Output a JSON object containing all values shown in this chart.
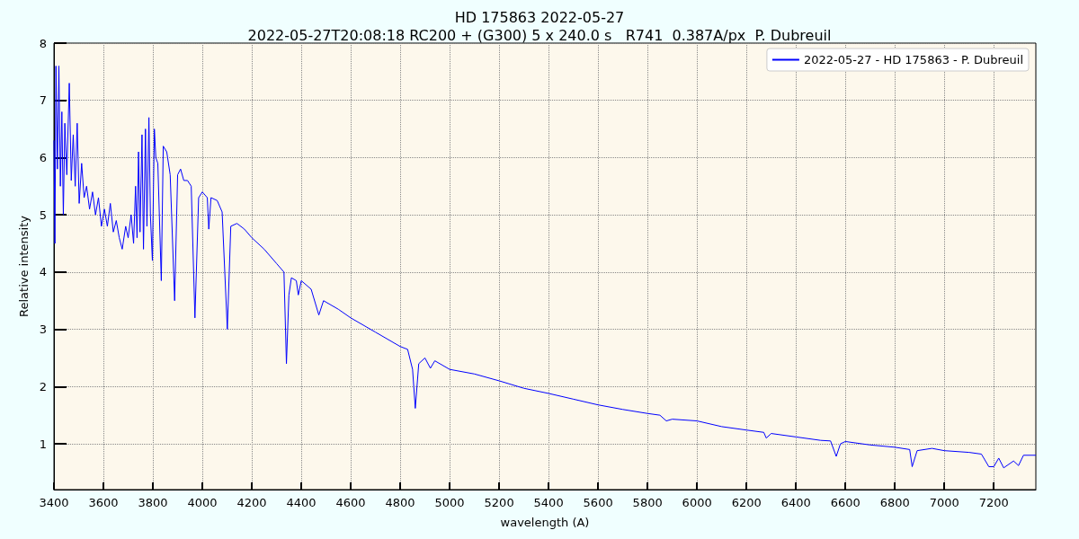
{
  "chart_data": {
    "type": "line",
    "title": "HD 175863 2022-05-27",
    "subtitle": "2022-05-27T20:08:18 RC200 + (G300) 5 x 240.0 s   R741  0.387A/px  P. Dubreuil",
    "xlabel": "wavelength (A)",
    "ylabel": "Relative intensity",
    "xlim": [
      3400,
      7370
    ],
    "ylim": [
      0.2,
      8
    ],
    "xticks": [
      3400,
      3600,
      3800,
      4000,
      4200,
      4400,
      4600,
      4800,
      5000,
      5200,
      5400,
      5600,
      5800,
      6000,
      6200,
      6400,
      6600,
      6800,
      7000,
      7200
    ],
    "yticks": [
      1,
      2,
      3,
      4,
      5,
      6,
      7,
      8
    ],
    "grid": true,
    "legend": "top right",
    "marker": "none",
    "line_style": "solid",
    "series": [
      {
        "name": "2022-05-27 - HD 175863 - P. Dubreuil",
        "color": "#0000ff",
        "x": [
          3400,
          3404,
          3408,
          3414,
          3420,
          3426,
          3432,
          3438,
          3444,
          3452,
          3462,
          3470,
          3478,
          3486,
          3494,
          3502,
          3512,
          3522,
          3532,
          3544,
          3556,
          3568,
          3580,
          3592,
          3604,
          3616,
          3628,
          3640,
          3652,
          3664,
          3676,
          3690,
          3700,
          3712,
          3722,
          3730,
          3736,
          3742,
          3748,
          3756,
          3762,
          3770,
          3776,
          3784,
          3790,
          3798,
          3806,
          3812,
          3820,
          3834,
          3842,
          3856,
          3870,
          3888,
          3900,
          3912,
          3925,
          3940,
          3955,
          3970,
          3985,
          4000,
          4020,
          4026,
          4035,
          4060,
          4080,
          4101,
          4115,
          4140,
          4170,
          4200,
          4250,
          4300,
          4330,
          4340,
          4350,
          4360,
          4380,
          4388,
          4400,
          4440,
          4471,
          4490,
          4550,
          4600,
          4700,
          4800,
          4830,
          4850,
          4861,
          4875,
          4900,
          4922,
          4940,
          5000,
          5100,
          5200,
          5300,
          5400,
          5500,
          5600,
          5700,
          5800,
          5850,
          5876,
          5900,
          6000,
          6100,
          6200,
          6270,
          6280,
          6300,
          6400,
          6500,
          6540,
          6563,
          6580,
          6600,
          6700,
          6800,
          6860,
          6870,
          6890,
          6950,
          7000,
          7100,
          7150,
          7180,
          7200,
          7220,
          7240,
          7280,
          7300,
          7320,
          7370
        ],
        "values": [
          6.3,
          4.5,
          7.6,
          5.8,
          7.6,
          5.5,
          6.8,
          5.0,
          6.6,
          5.7,
          7.3,
          5.6,
          6.4,
          5.5,
          6.6,
          5.2,
          5.9,
          5.3,
          5.5,
          5.1,
          5.4,
          5.0,
          5.3,
          4.8,
          5.1,
          4.8,
          5.2,
          4.7,
          4.9,
          4.6,
          4.4,
          4.8,
          4.6,
          5.0,
          4.5,
          5.5,
          4.6,
          6.1,
          4.7,
          6.4,
          4.4,
          6.5,
          4.8,
          6.7,
          5.0,
          4.2,
          6.5,
          6.0,
          5.9,
          3.85,
          6.2,
          6.1,
          5.7,
          3.5,
          5.7,
          5.8,
          5.6,
          5.6,
          5.5,
          3.2,
          5.3,
          5.4,
          5.3,
          4.75,
          5.3,
          5.25,
          5.05,
          3.0,
          4.8,
          4.85,
          4.75,
          4.6,
          4.4,
          4.15,
          4.0,
          2.4,
          3.6,
          3.9,
          3.85,
          3.6,
          3.85,
          3.7,
          3.25,
          3.5,
          3.35,
          3.2,
          2.95,
          2.7,
          2.65,
          2.3,
          1.62,
          2.4,
          2.5,
          2.32,
          2.45,
          2.3,
          2.22,
          2.1,
          1.97,
          1.88,
          1.78,
          1.68,
          1.6,
          1.53,
          1.5,
          1.4,
          1.43,
          1.4,
          1.3,
          1.24,
          1.2,
          1.1,
          1.18,
          1.12,
          1.06,
          1.05,
          0.78,
          1.0,
          1.04,
          0.98,
          0.94,
          0.9,
          0.6,
          0.88,
          0.92,
          0.88,
          0.85,
          0.82,
          0.6,
          0.6,
          0.75,
          0.58,
          0.7,
          0.62,
          0.8,
          0.8
        ]
      }
    ]
  }
}
